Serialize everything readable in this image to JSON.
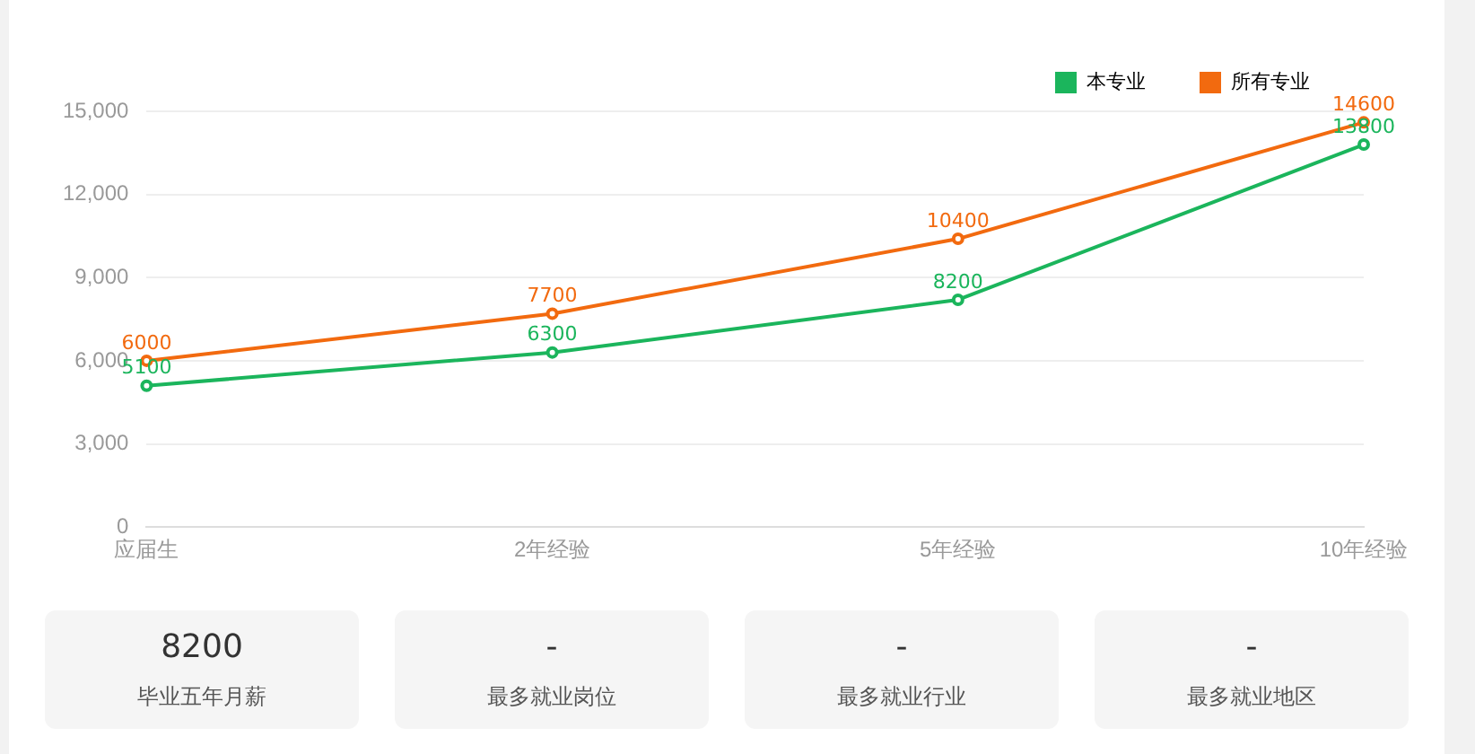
{
  "chart_data": [
    {
      "type": "line",
      "categories": [
        "应届生",
        "2年经验",
        "5年经验",
        "10年经验"
      ],
      "series": [
        {
          "name": "本专业",
          "color": "#1bb55c",
          "values": [
            5100,
            6300,
            8200,
            13800
          ]
        },
        {
          "name": "所有专业",
          "color": "#f26a0f",
          "values": [
            6000,
            7700,
            10400,
            14600
          ]
        }
      ],
      "ylim": [
        0,
        15000
      ],
      "yticks": [
        {
          "value": 0,
          "label": "0"
        },
        {
          "value": 3000,
          "label": "3,000"
        },
        {
          "value": 6000,
          "label": "6,000"
        },
        {
          "value": 9000,
          "label": "9,000"
        },
        {
          "value": 12000,
          "label": "12,000"
        },
        {
          "value": 15000,
          "label": "15,000"
        }
      ],
      "grid": "y",
      "legend": "top right",
      "marker": "circle",
      "line_style": "solid",
      "data_labels": true
    },
    {
      "type": "other",
      "annotations": [
        "8200",
        "毕业五年月薪",
        "-",
        "最多就业岗位",
        "-",
        "最多就业行业",
        "-",
        "最多就业地区"
      ]
    }
  ]
}
